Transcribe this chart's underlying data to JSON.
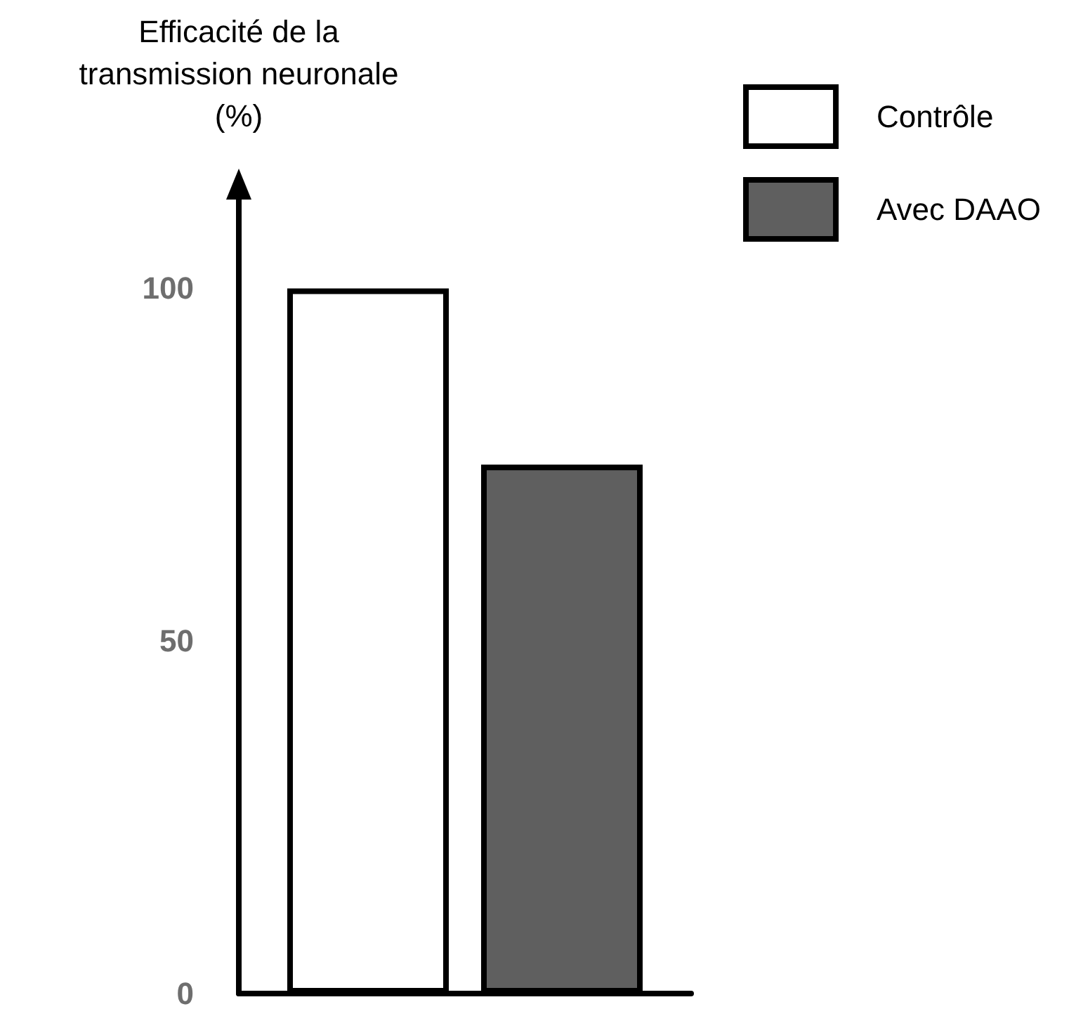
{
  "chart_data": {
    "type": "bar",
    "ylabel": "Efficacité de la transmission neuronale (%)",
    "categories": [
      null
    ],
    "series": [
      {
        "name": "Contrôle",
        "color": "#ffffff",
        "values": [
          100
        ]
      },
      {
        "name": "Avec DAAO",
        "color": "#5f5f5f",
        "values": [
          75
        ]
      }
    ],
    "ylim": [
      0,
      113
    ],
    "yticks": [
      0,
      50,
      100
    ],
    "legend": "top right"
  }
}
